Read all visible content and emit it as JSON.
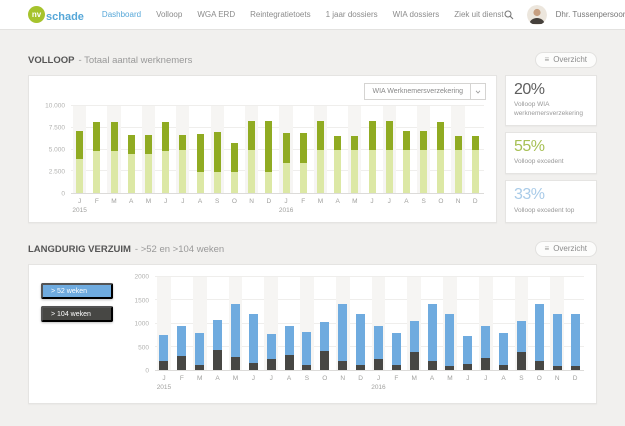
{
  "brand": {
    "logo_circle_text": "nv",
    "logo_text": "schade"
  },
  "nav": {
    "items": [
      {
        "label": "Dashboard",
        "active": true
      },
      {
        "label": "Volloop",
        "active": false
      },
      {
        "label": "WGA ERD",
        "active": false
      },
      {
        "label": "Reintegratietoets",
        "active": false
      },
      {
        "label": "1 jaar dossiers",
        "active": false
      },
      {
        "label": "WIA dossiers",
        "active": false
      },
      {
        "label": "Ziek uit dienst",
        "active": false
      }
    ],
    "search_icon": "magnifier",
    "user": {
      "name": "Dhr. Tussenpersoon",
      "chevron_icon": "chevron-down"
    }
  },
  "colors": {
    "accent_blue": "#56a7d8",
    "logo_green": "#a6c32d",
    "bar_light_green": "#dce8a5",
    "bar_dark_green": "#90ab22",
    "bar_blue": "#6fabdf",
    "bar_dark_gray": "#474744",
    "page_bg": "#f1f0ee"
  },
  "sections": {
    "volloop": {
      "title": "VOLLOOP",
      "subtitle": "- Totaal aantal werknemers",
      "overview_label": "Overzicht",
      "overview_icon": "menu-lines",
      "dropdown_value": "WIA Werknemersverzekering",
      "stats": [
        {
          "value": "20%",
          "label": "Volloop WIA werknemersverzekering",
          "color": "#5f5f5f"
        },
        {
          "value": "55%",
          "label": "Volloop excedent",
          "color": "#a7c054"
        },
        {
          "value": "33%",
          "label": "Volloop excedent top",
          "color": "#a9cbe8"
        }
      ]
    },
    "verzuim": {
      "title": "LANGDURIG VERZUIM",
      "subtitle": "- >52 en >104 weken",
      "overview_label": "Overzicht",
      "overview_icon": "menu-lines",
      "legend": [
        {
          "label": "> 52 weken",
          "color": "#6fabdf"
        },
        {
          "label": "> 104 weken",
          "color": "#474744"
        }
      ]
    }
  },
  "chart_data": [
    {
      "type": "bar",
      "stacked": true,
      "title": "VOLLOOP - Totaal aantal werknemers",
      "categories": [
        "J",
        "F",
        "M",
        "A",
        "M",
        "J",
        "J",
        "A",
        "S",
        "O",
        "N",
        "D",
        "J",
        "F",
        "M",
        "A",
        "M",
        "J",
        "J",
        "A",
        "S",
        "O",
        "N",
        "D"
      ],
      "year_labels": [
        {
          "index": 0,
          "label": "2015"
        },
        {
          "index": 12,
          "label": "2016"
        }
      ],
      "series": [
        {
          "name": "volloop-bottom",
          "color": "#dce8a5",
          "values": [
            3900,
            4800,
            4800,
            4450,
            4450,
            4800,
            4900,
            2400,
            2400,
            2400,
            4900,
            2400,
            3500,
            3500,
            4900,
            4900,
            4900,
            4900,
            4900,
            4900,
            4900,
            4900,
            4900,
            4900
          ]
        },
        {
          "name": "volloop-top",
          "color": "#90ab22",
          "values": [
            3200,
            3400,
            3400,
            2250,
            2250,
            3400,
            1800,
            4400,
            4600,
            3400,
            3400,
            5900,
            3400,
            3400,
            3400,
            1700,
            1700,
            3400,
            3400,
            2200,
            2200,
            3300,
            1700,
            1700
          ]
        }
      ],
      "ylim": [
        0,
        10000
      ],
      "yticks": [
        "0",
        "2.500",
        "5.000",
        "7.500",
        "10.000"
      ],
      "grid": true,
      "legend_position": "none"
    },
    {
      "type": "bar",
      "stacked": true,
      "title": "LANGDURIG VERZUIM - >52 en >104 weken",
      "categories": [
        "J",
        "F",
        "M",
        "A",
        "M",
        "J",
        "J",
        "A",
        "S",
        "O",
        "N",
        "D",
        "J",
        "F",
        "M",
        "A",
        "M",
        "J",
        "J",
        "A",
        "S",
        "O",
        "N",
        "D"
      ],
      "year_labels": [
        {
          "index": 0,
          "label": "2015"
        },
        {
          "index": 12,
          "label": "2016"
        }
      ],
      "series": [
        {
          "name": "> 104 weken",
          "color": "#474744",
          "values": [
            200,
            300,
            100,
            420,
            280,
            160,
            230,
            320,
            100,
            400,
            200,
            110,
            240,
            100,
            380,
            200,
            90,
            130,
            260,
            100,
            380,
            200,
            90,
            90
          ]
        },
        {
          "name": "> 52 weken",
          "color": "#6fabdf",
          "values": [
            550,
            650,
            700,
            660,
            1150,
            1050,
            550,
            630,
            720,
            630,
            1230,
            1100,
            710,
            690,
            680,
            1210,
            1120,
            600,
            690,
            690,
            680,
            1210,
            1120,
            1120
          ]
        }
      ],
      "ylim": [
        0,
        2000
      ],
      "yticks": [
        "0",
        "500",
        "1000",
        "1500",
        "2000"
      ],
      "grid": true,
      "legend_position": "left"
    }
  ]
}
